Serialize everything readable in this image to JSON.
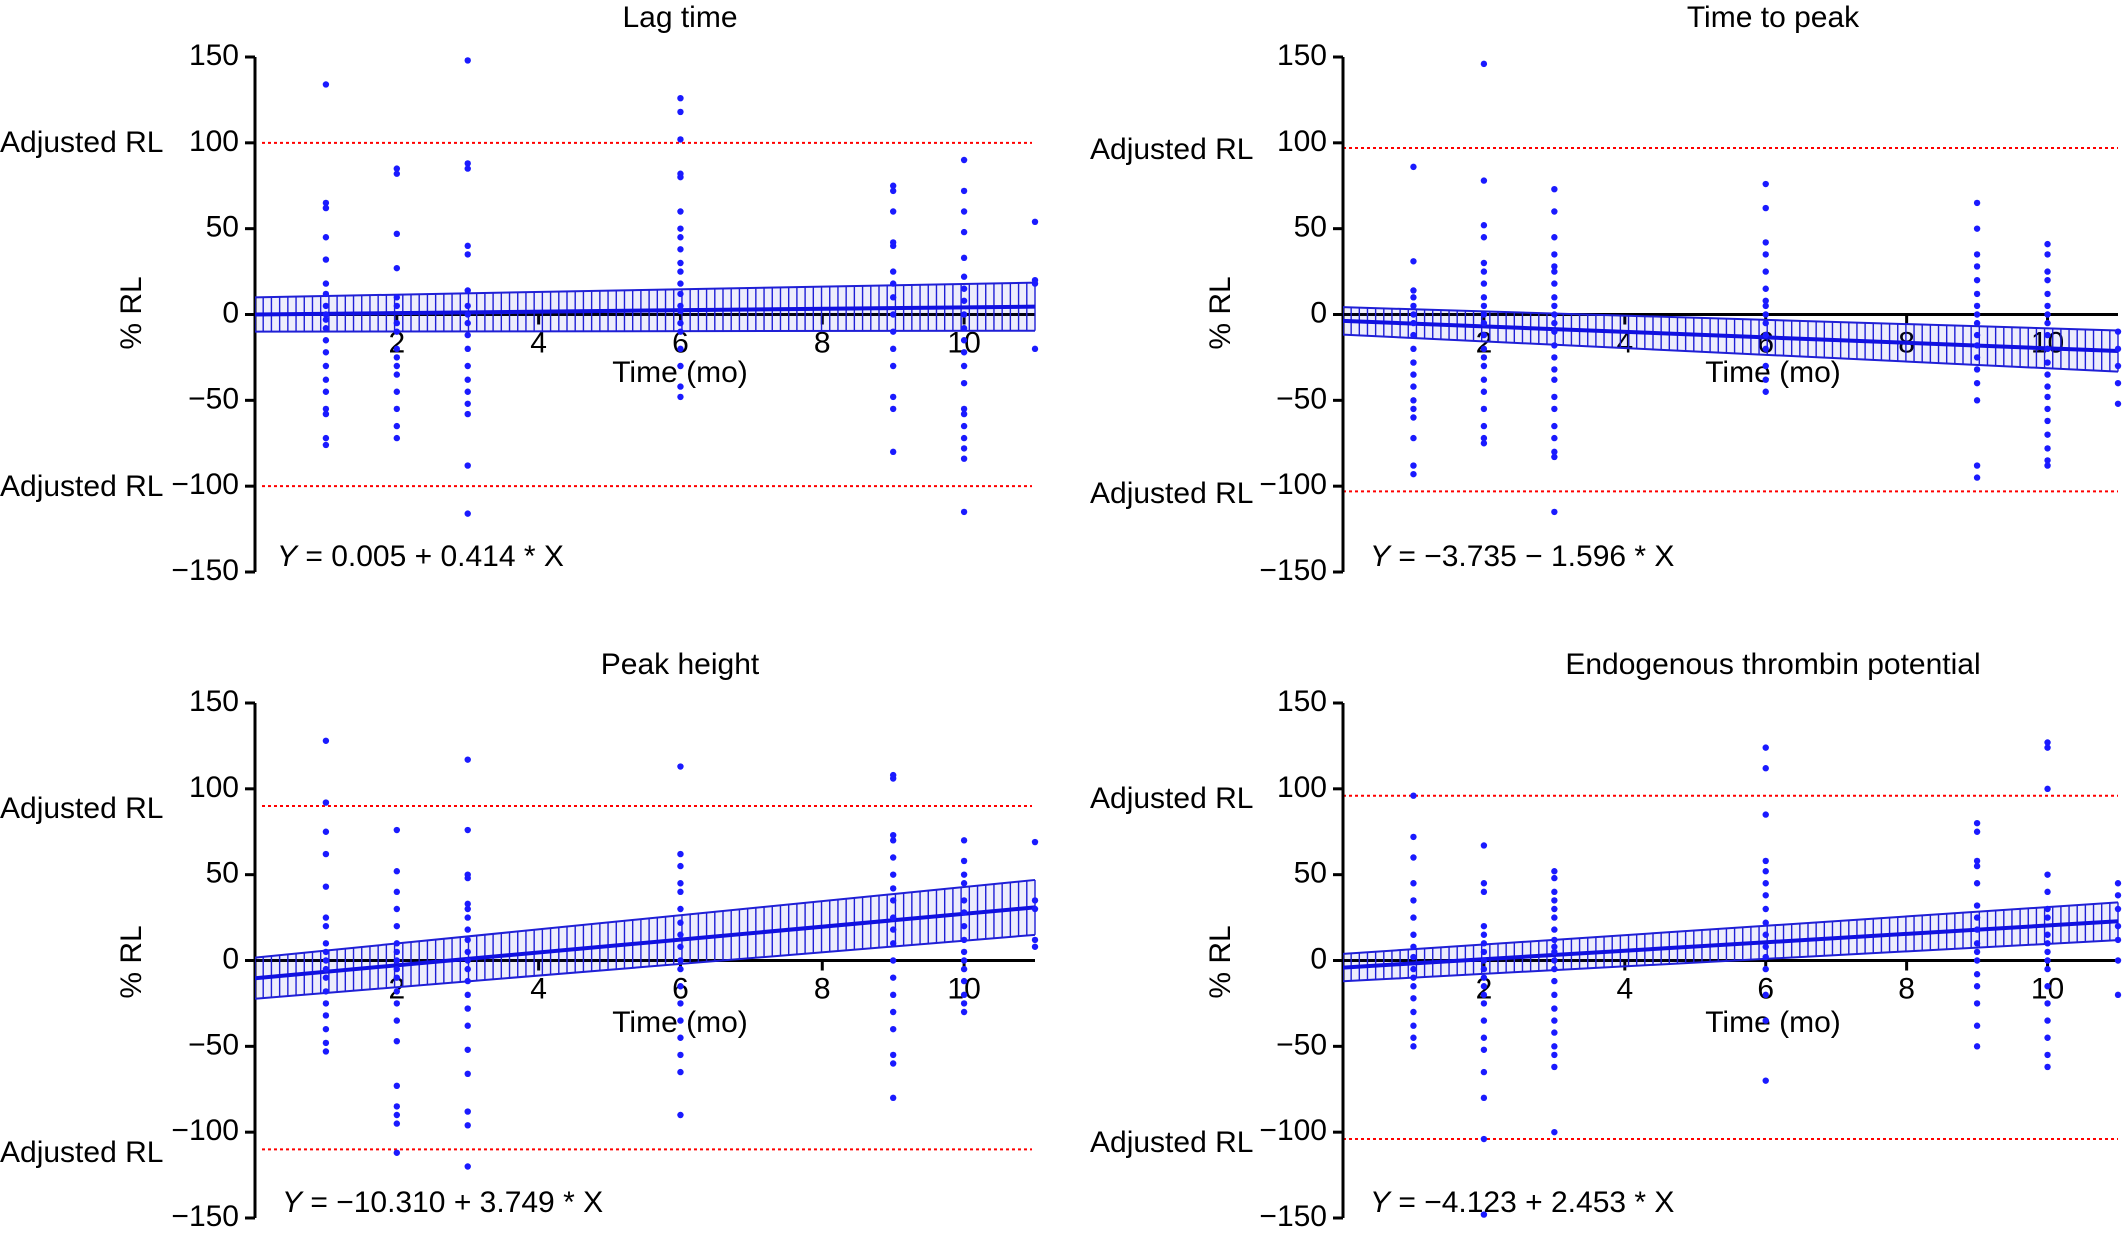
{
  "colors": {
    "points": "#1a1aff",
    "regression": "#1010e0",
    "ci_band": "#1f1fd6",
    "reference_line": "#ff0000",
    "axis": "#000000"
  },
  "chart_data": [
    {
      "type": "scatter",
      "title": "Lag time",
      "xlabel": "Time (mo)",
      "ylabel": "% RL",
      "xlim": [
        0,
        11
      ],
      "ylim": [
        -150,
        150
      ],
      "x_ticks": [
        2,
        4,
        6,
        8,
        10
      ],
      "y_ticks": [
        150,
        100,
        50,
        0,
        -50,
        -100,
        -150
      ],
      "ref_lines": [
        {
          "label": "Adjusted RL",
          "y": 100
        },
        {
          "label": "Adjusted RL",
          "y": -100
        }
      ],
      "regression": {
        "intercept": 0.005,
        "slope": 0.414,
        "ci_half_width": [
          10,
          14
        ]
      },
      "equation": {
        "y_var": "Y",
        "text": " = 0.005 + 0.414 * X"
      },
      "points": [
        {
          "x": 1,
          "ys": [
            134,
            65,
            62,
            45,
            32,
            18,
            12,
            5,
            0,
            -3,
            -8,
            -15,
            -22,
            -30,
            -38,
            -45,
            -55,
            -58,
            -72,
            -76
          ]
        },
        {
          "x": 2,
          "ys": [
            85,
            82,
            47,
            27,
            10,
            5,
            -5,
            -10,
            -20,
            -25,
            -30,
            -35,
            -45,
            -55,
            -65,
            -72
          ]
        },
        {
          "x": 3,
          "ys": [
            148,
            88,
            85,
            40,
            35,
            14,
            5,
            0,
            -5,
            -12,
            -20,
            -30,
            -38,
            -45,
            -52,
            -58,
            -88,
            -116
          ]
        },
        {
          "x": 6,
          "ys": [
            126,
            118,
            102,
            82,
            80,
            60,
            50,
            45,
            38,
            30,
            25,
            18,
            12,
            5,
            2,
            -5,
            -10,
            -20,
            -30,
            -42,
            -48
          ]
        },
        {
          "x": 9,
          "ys": [
            75,
            72,
            60,
            42,
            40,
            25,
            18,
            10,
            0,
            -10,
            -20,
            -30,
            -48,
            -55,
            -80
          ]
        },
        {
          "x": 10,
          "ys": [
            90,
            72,
            60,
            48,
            33,
            22,
            15,
            8,
            0,
            -8,
            -15,
            -22,
            -30,
            -40,
            -55,
            -58,
            -65,
            -72,
            -78,
            -84,
            -115
          ]
        },
        {
          "x": 11,
          "ys": [
            54,
            20,
            18,
            -20
          ]
        }
      ]
    },
    {
      "type": "scatter",
      "title": "Time to peak",
      "xlabel": "Time (mo)",
      "ylabel": "% RL",
      "xlim": [
        0,
        11
      ],
      "ylim": [
        -150,
        150
      ],
      "x_ticks": [
        2,
        4,
        6,
        8,
        10
      ],
      "y_ticks": [
        150,
        100,
        50,
        0,
        -50,
        -100,
        -150
      ],
      "ref_lines": [
        {
          "label": "Adjusted RL",
          "y": 97
        },
        {
          "label": "Adjusted RL",
          "y": -103
        }
      ],
      "regression": {
        "intercept": -3.735,
        "slope": -1.596,
        "ci_half_width": [
          8,
          12
        ]
      },
      "equation": {
        "y_var": "Y",
        "text": " = −3.735 − 1.596 * X"
      },
      "points": [
        {
          "x": 1,
          "ys": [
            86,
            31,
            14,
            10,
            5,
            0,
            -5,
            -12,
            -20,
            -28,
            -35,
            -42,
            -50,
            -55,
            -60,
            -72,
            -88,
            -93
          ]
        },
        {
          "x": 2,
          "ys": [
            146,
            78,
            52,
            45,
            30,
            25,
            18,
            10,
            5,
            0,
            -5,
            -12,
            -20,
            -25,
            -30,
            -38,
            -45,
            -55,
            -65,
            -72,
            -75
          ]
        },
        {
          "x": 3,
          "ys": [
            73,
            60,
            45,
            35,
            28,
            25,
            18,
            10,
            5,
            0,
            -5,
            -10,
            -18,
            -25,
            -32,
            -38,
            -48,
            -55,
            -65,
            -72,
            -80,
            -83,
            -115
          ]
        },
        {
          "x": 6,
          "ys": [
            76,
            62,
            42,
            35,
            25,
            15,
            8,
            5,
            0,
            -5,
            -12,
            -20,
            -30,
            -38,
            -45
          ]
        },
        {
          "x": 9,
          "ys": [
            65,
            50,
            35,
            28,
            20,
            12,
            5,
            0,
            -5,
            -12,
            -18,
            -25,
            -32,
            -40,
            -50,
            -88,
            -95
          ]
        },
        {
          "x": 10,
          "ys": [
            41,
            35,
            25,
            20,
            12,
            5,
            0,
            -5,
            -12,
            -20,
            -28,
            -35,
            -42,
            -48,
            -55,
            -62,
            -70,
            -78,
            -85,
            -88
          ]
        },
        {
          "x": 11,
          "ys": [
            -10,
            -20,
            -30,
            -40,
            -52
          ]
        }
      ]
    },
    {
      "type": "scatter",
      "title": "Peak height",
      "xlabel": "Time (mo)",
      "ylabel": "% RL",
      "xlim": [
        0,
        11
      ],
      "ylim": [
        -150,
        150
      ],
      "x_ticks": [
        2,
        4,
        6,
        8,
        10
      ],
      "y_ticks": [
        150,
        100,
        50,
        0,
        -50,
        -100,
        -150
      ],
      "ref_lines": [
        {
          "label": "Adjusted RL",
          "y": 90
        },
        {
          "label": "Adjusted RL",
          "y": -110
        }
      ],
      "regression": {
        "intercept": -10.31,
        "slope": 3.749,
        "ci_half_width": [
          12,
          16
        ]
      },
      "equation": {
        "y_var": "Y",
        "text": " = −10.310 + 3.749 * X"
      },
      "points": [
        {
          "x": 1,
          "ys": [
            128,
            92,
            75,
            62,
            43,
            25,
            20,
            10,
            5,
            0,
            -5,
            -10,
            -18,
            -25,
            -32,
            -40,
            -48,
            -53
          ]
        },
        {
          "x": 2,
          "ys": [
            76,
            52,
            40,
            30,
            20,
            10,
            5,
            0,
            -5,
            -10,
            -18,
            -25,
            -35,
            -47,
            -73,
            -85,
            -90,
            -95,
            -112
          ]
        },
        {
          "x": 3,
          "ys": [
            117,
            76,
            50,
            48,
            33,
            30,
            25,
            18,
            12,
            5,
            0,
            -5,
            -12,
            -20,
            -28,
            -38,
            -52,
            -66,
            -88,
            -96,
            -120
          ]
        },
        {
          "x": 6,
          "ys": [
            113,
            62,
            55,
            45,
            40,
            30,
            22,
            15,
            8,
            0,
            -5,
            -15,
            -25,
            -35,
            -45,
            -55,
            -65,
            -90
          ]
        },
        {
          "x": 9,
          "ys": [
            108,
            106,
            73,
            70,
            60,
            50,
            42,
            35,
            25,
            18,
            10,
            0,
            -10,
            -20,
            -30,
            -40,
            -55,
            -60,
            -80
          ]
        },
        {
          "x": 10,
          "ys": [
            70,
            58,
            50,
            45,
            35,
            28,
            20,
            12,
            5,
            0,
            -5,
            -12,
            -20,
            -25,
            -30
          ]
        },
        {
          "x": 11,
          "ys": [
            69,
            35,
            30,
            12,
            8
          ]
        }
      ]
    },
    {
      "type": "scatter",
      "title": "Endogenous thrombin potential",
      "xlabel": "Time (mo)",
      "ylabel": "% RL",
      "xlim": [
        0,
        11
      ],
      "ylim": [
        -150,
        150
      ],
      "x_ticks": [
        2,
        4,
        6,
        8,
        10
      ],
      "y_ticks": [
        150,
        100,
        50,
        0,
        -50,
        -100,
        -150
      ],
      "ref_lines": [
        {
          "label": "Adjusted RL",
          "y": 96
        },
        {
          "label": "Adjusted RL",
          "y": -104
        }
      ],
      "regression": {
        "intercept": -4.123,
        "slope": 2.453,
        "ci_half_width": [
          8,
          11
        ]
      },
      "equation": {
        "y_var": "Y",
        "text": " = −4.123 + 2.453 * X"
      },
      "points": [
        {
          "x": 1,
          "ys": [
            96,
            72,
            60,
            45,
            35,
            25,
            15,
            8,
            2,
            -5,
            -10,
            -15,
            -22,
            -30,
            -38,
            -45,
            -50
          ]
        },
        {
          "x": 2,
          "ys": [
            67,
            45,
            40,
            20,
            15,
            10,
            5,
            0,
            -5,
            -10,
            -15,
            -20,
            -25,
            -35,
            -45,
            -52,
            -65,
            -80,
            -104,
            -148
          ]
        },
        {
          "x": 3,
          "ys": [
            52,
            48,
            40,
            35,
            30,
            25,
            18,
            12,
            8,
            5,
            0,
            -5,
            -12,
            -20,
            -28,
            -35,
            -42,
            -50,
            -55,
            -62,
            -100
          ]
        },
        {
          "x": 6,
          "ys": [
            124,
            112,
            85,
            58,
            52,
            45,
            38,
            30,
            22,
            15,
            8,
            2,
            -5,
            -20,
            -35,
            -70
          ]
        },
        {
          "x": 9,
          "ys": [
            80,
            75,
            58,
            55,
            45,
            32,
            25,
            18,
            10,
            5,
            0,
            -8,
            -15,
            -25,
            -38,
            -50
          ]
        },
        {
          "x": 10,
          "ys": [
            127,
            124,
            100,
            50,
            40,
            30,
            25,
            15,
            10,
            5,
            0,
            -5,
            -15,
            -25,
            -35,
            -45,
            -55,
            -62
          ]
        },
        {
          "x": 11,
          "ys": [
            45,
            38,
            30,
            20,
            12,
            0,
            -20
          ]
        }
      ]
    }
  ]
}
